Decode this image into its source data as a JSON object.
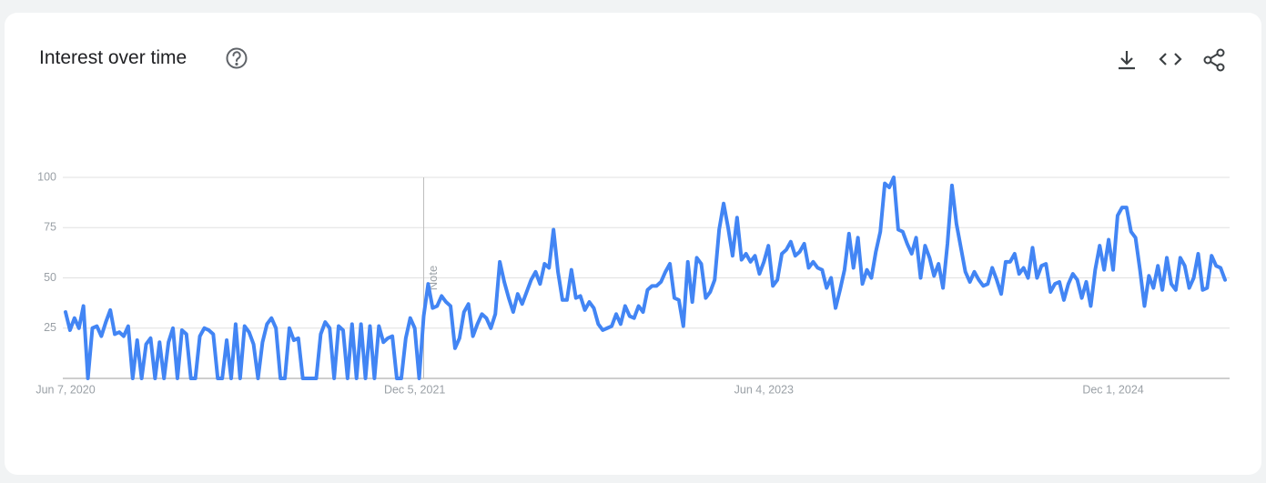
{
  "header": {
    "title": "Interest over time"
  },
  "chart_data": {
    "type": "line",
    "categories": [
      "Jun 7, 2020",
      null,
      null,
      null,
      null,
      null,
      null,
      null,
      null,
      null,
      null,
      null,
      null,
      null,
      null,
      null,
      null,
      null,
      null,
      null,
      null,
      null,
      null,
      null,
      null,
      null,
      null,
      null,
      null,
      null,
      null,
      null,
      null,
      null,
      null,
      null,
      null,
      null,
      null,
      null,
      null,
      null,
      null,
      null,
      null,
      null,
      null,
      null,
      null,
      null,
      null,
      null,
      null,
      null,
      null,
      null,
      null,
      null,
      null,
      null,
      null,
      null,
      null,
      null,
      null,
      null,
      null,
      null,
      null,
      null,
      null,
      null,
      null,
      null,
      null,
      null,
      null,
      null,
      "Dec 5, 2021",
      null,
      null,
      null,
      null,
      null,
      null,
      null,
      null,
      null,
      null,
      null,
      null,
      null,
      null,
      null,
      null,
      null,
      null,
      null,
      null,
      null,
      null,
      null,
      null,
      null,
      null,
      null,
      null,
      null,
      null,
      null,
      null,
      null,
      null,
      null,
      null,
      null,
      null,
      null,
      null,
      null,
      null,
      null,
      null,
      null,
      null,
      null,
      null,
      null,
      null,
      null,
      null,
      null,
      null,
      null,
      null,
      null,
      null,
      null,
      null,
      null,
      null,
      null,
      null,
      null,
      null,
      null,
      null,
      null,
      null,
      null,
      null,
      null,
      null,
      null,
      null,
      null,
      "Jun 4, 2023",
      null,
      null,
      null,
      null,
      null,
      null,
      null,
      null,
      null,
      null,
      null,
      null,
      null,
      null,
      null,
      null,
      null,
      null,
      null,
      null,
      null,
      null,
      null,
      null,
      null,
      null,
      null,
      null,
      null,
      null,
      null,
      null,
      null,
      null,
      null,
      null,
      null,
      null,
      null,
      null,
      null,
      null,
      null,
      null,
      null,
      null,
      null,
      null,
      null,
      null,
      null,
      null,
      null,
      null,
      null,
      null,
      null,
      null,
      null,
      null,
      null,
      null,
      null,
      null,
      null,
      null,
      null,
      null,
      null,
      null,
      null,
      null,
      null,
      null,
      null,
      null,
      null,
      "Dec 1, 2024",
      null,
      null,
      null,
      null,
      null,
      null,
      null,
      null,
      null,
      null,
      null,
      null,
      null,
      null,
      null,
      null,
      null,
      null,
      null,
      null,
      null,
      null,
      null,
      null,
      null
    ],
    "values": [
      33,
      24,
      30,
      25,
      36,
      0,
      25,
      26,
      21,
      28,
      34,
      22,
      23,
      21,
      26,
      0,
      19,
      0,
      17,
      20,
      0,
      18,
      0,
      18,
      25,
      0,
      24,
      22,
      0,
      0,
      21,
      25,
      24,
      22,
      0,
      0,
      19,
      0,
      27,
      0,
      26,
      23,
      17,
      0,
      18,
      27,
      30,
      25,
      0,
      0,
      25,
      19,
      20,
      0,
      0,
      0,
      0,
      22,
      28,
      25,
      0,
      26,
      24,
      0,
      27,
      0,
      27,
      0,
      26,
      0,
      26,
      18,
      20,
      21,
      0,
      0,
      20,
      30,
      25,
      0,
      31,
      47,
      35,
      36,
      41,
      38,
      36,
      15,
      20,
      33,
      37,
      21,
      27,
      32,
      30,
      25,
      32,
      58,
      48,
      40,
      33,
      42,
      37,
      43,
      49,
      53,
      47,
      57,
      55,
      74,
      53,
      39,
      39,
      54,
      40,
      41,
      34,
      38,
      35,
      27,
      24,
      25,
      26,
      32,
      27,
      36,
      31,
      30,
      36,
      33,
      44,
      46,
      46,
      48,
      53,
      57,
      40,
      39,
      26,
      58,
      38,
      60,
      57,
      40,
      43,
      49,
      74,
      87,
      75,
      61,
      80,
      59,
      62,
      58,
      61,
      52,
      58,
      66,
      46,
      49,
      62,
      64,
      68,
      61,
      63,
      67,
      55,
      58,
      55,
      54,
      45,
      50,
      35,
      44,
      54,
      72,
      55,
      70,
      47,
      54,
      50,
      63,
      73,
      97,
      95,
      100,
      74,
      73,
      67,
      62,
      70,
      50,
      66,
      60,
      51,
      57,
      45,
      67,
      96,
      77,
      65,
      53,
      48,
      53,
      49,
      46,
      47,
      55,
      49,
      42,
      58,
      58,
      62,
      52,
      55,
      50,
      65,
      50,
      56,
      57,
      43,
      47,
      48,
      39,
      47,
      52,
      49,
      40,
      48,
      36,
      54,
      66,
      54,
      69,
      54,
      81,
      85,
      85,
      73,
      70,
      54,
      36,
      51,
      45,
      56,
      44,
      60,
      47,
      44,
      60,
      56,
      45,
      50,
      62,
      44,
      45,
      61,
      56,
      55,
      49
    ],
    "color": "#4285f4",
    "ylim": [
      0,
      100
    ],
    "yticks": [
      25,
      50,
      75,
      100
    ],
    "grid": true,
    "annotations": [
      {
        "text": "Note",
        "x": 80
      }
    ]
  }
}
